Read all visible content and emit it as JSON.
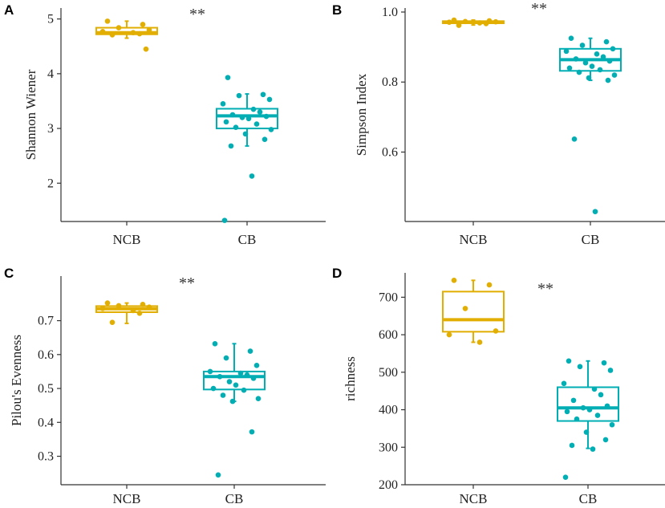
{
  "colors": {
    "ncb": "#E2AE00",
    "cb": "#00AEB3"
  },
  "chart_data": [
    {
      "type": "box",
      "panel": "A",
      "ylabel": "Shannon Wiener",
      "categories": [
        "NCB",
        "CB"
      ],
      "ylim": [
        1.3,
        5.2
      ],
      "yticks": [
        2,
        3,
        4,
        5
      ],
      "significance": "**",
      "boxes": [
        {
          "name": "NCB",
          "whisker_low": 4.65,
          "q1": 4.72,
          "median": 4.75,
          "q3": 4.84,
          "whisker_high": 4.96,
          "points": [
            4.96,
            4.9,
            4.84,
            4.8,
            4.77,
            4.75,
            4.73,
            4.71,
            4.45
          ]
        },
        {
          "name": "CB",
          "whisker_low": 2.68,
          "q1": 3.0,
          "median": 3.23,
          "q3": 3.36,
          "whisker_high": 3.63,
          "points": [
            3.93,
            3.62,
            3.6,
            3.53,
            3.45,
            3.35,
            3.3,
            3.25,
            3.22,
            3.2,
            3.18,
            3.12,
            3.08,
            3.02,
            2.98,
            2.9,
            2.8,
            2.68,
            2.13,
            1.32
          ]
        }
      ]
    },
    {
      "type": "box",
      "panel": "B",
      "ylabel": "Simpson Index",
      "categories": [
        "NCB",
        "CB"
      ],
      "ylim": [
        0.42,
        1.0
      ],
      "yticks": [
        0.6,
        0.8,
        1.0
      ],
      "yticklabels": [
        "0.6",
        "0.8",
        "1.0"
      ],
      "significance": "**",
      "boxes": [
        {
          "name": "NCB",
          "whisker_low": 0.963,
          "q1": 0.968,
          "median": 0.971,
          "q3": 0.974,
          "whisker_high": 0.977,
          "points": [
            0.977,
            0.975,
            0.973,
            0.972,
            0.971,
            0.969,
            0.967,
            0.962
          ]
        },
        {
          "name": "CB",
          "whisker_low": 0.805,
          "q1": 0.832,
          "median": 0.864,
          "q3": 0.895,
          "whisker_high": 0.925,
          "points": [
            0.925,
            0.915,
            0.905,
            0.895,
            0.888,
            0.88,
            0.872,
            0.866,
            0.86,
            0.855,
            0.845,
            0.84,
            0.835,
            0.828,
            0.82,
            0.812,
            0.805,
            0.637,
            0.43
          ]
        }
      ]
    },
    {
      "type": "box",
      "panel": "C",
      "ylabel": "Pilou's Evenness",
      "categories": [
        "NCB",
        "CB"
      ],
      "ylim": [
        0.235,
        0.77
      ],
      "yticks": [
        0.3,
        0.4,
        0.5,
        0.6,
        0.7
      ],
      "significance": "**",
      "boxes": [
        {
          "name": "NCB",
          "whisker_low": 0.692,
          "q1": 0.725,
          "median": 0.735,
          "q3": 0.743,
          "whisker_high": 0.752,
          "points": [
            0.752,
            0.748,
            0.744,
            0.74,
            0.736,
            0.73,
            0.722,
            0.695
          ]
        },
        {
          "name": "CB",
          "whisker_low": 0.462,
          "q1": 0.497,
          "median": 0.535,
          "q3": 0.55,
          "whisker_high": 0.632,
          "points": [
            0.632,
            0.61,
            0.59,
            0.568,
            0.55,
            0.545,
            0.54,
            0.535,
            0.53,
            0.52,
            0.51,
            0.5,
            0.495,
            0.48,
            0.47,
            0.462,
            0.372,
            0.245
          ]
        }
      ]
    },
    {
      "type": "box",
      "panel": "D",
      "ylabel": "richness",
      "categories": [
        "NCB",
        "CB"
      ],
      "ylim": [
        200,
        765
      ],
      "yticks": [
        200,
        300,
        400,
        500,
        600,
        700
      ],
      "significance": "**",
      "boxes": [
        {
          "name": "NCB",
          "whisker_low": 580,
          "q1": 608,
          "median": 640,
          "q3": 715,
          "whisker_high": 745,
          "points": [
            745,
            733,
            670,
            610,
            600,
            580
          ]
        },
        {
          "name": "CB",
          "whisker_low": 297,
          "q1": 370,
          "median": 405,
          "q3": 460,
          "whisker_high": 530,
          "points": [
            530,
            525,
            515,
            505,
            470,
            455,
            440,
            425,
            410,
            405,
            400,
            395,
            385,
            375,
            360,
            340,
            320,
            305,
            295,
            220
          ]
        }
      ]
    }
  ]
}
